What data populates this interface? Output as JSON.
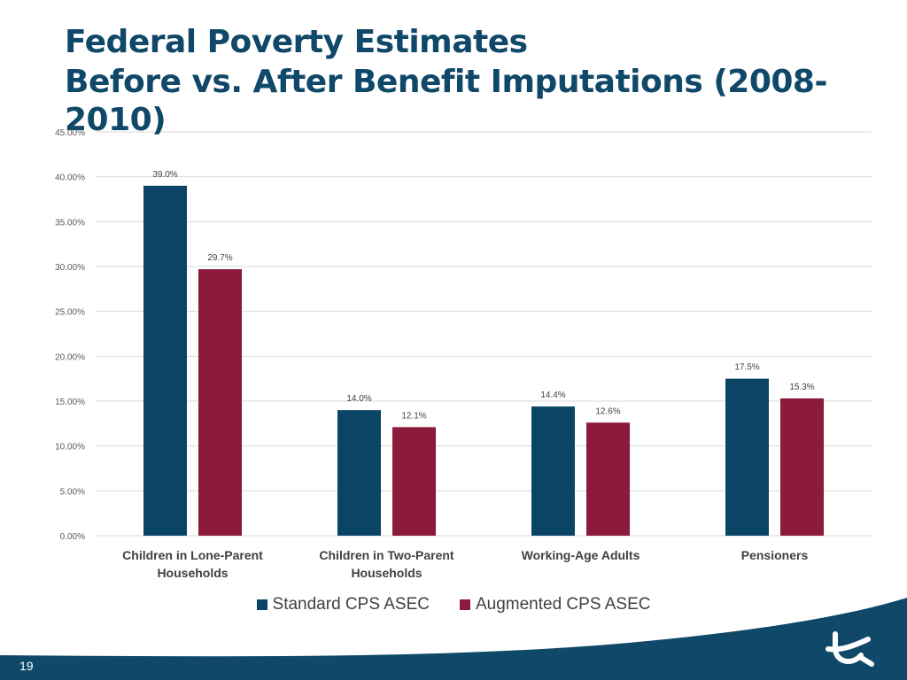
{
  "slide": {
    "title": "Federal Poverty Estimates",
    "subtitle": "Before vs. After Benefit Imputations (2008-2010)",
    "page_number": "19"
  },
  "colors": {
    "title": "#0f4868",
    "standard": "#0b4566",
    "augmented": "#8b1a3b",
    "footer": "#0f4868"
  },
  "chart_data": {
    "type": "bar",
    "title": "Federal Poverty Estimates — Before vs. After Benefit Imputations (2008-2010)",
    "xlabel": "",
    "ylabel": "",
    "ylim": [
      0,
      45
    ],
    "yticks": [
      0,
      5,
      10,
      15,
      20,
      25,
      30,
      35,
      40,
      45
    ],
    "ytick_labels": [
      "0.00%",
      "5.00%",
      "10.00%",
      "15.00%",
      "20.00%",
      "25.00%",
      "30.00%",
      "35.00%",
      "40.00%",
      "45.00%"
    ],
    "grid": true,
    "legend_position": "bottom",
    "categories": [
      [
        "Children in Lone-Parent",
        "Households"
      ],
      [
        "Children in Two-Parent",
        "Households"
      ],
      [
        "Working-Age Adults"
      ],
      [
        "Pensioners"
      ]
    ],
    "series": [
      {
        "name": "Standard CPS ASEC",
        "color": "#0b4566",
        "values": [
          39.0,
          14.0,
          14.4,
          17.5
        ],
        "labels": [
          "39.0%",
          "14.0%",
          "14.4%",
          "17.5%"
        ]
      },
      {
        "name": "Augmented CPS ASEC",
        "color": "#8b1a3b",
        "values": [
          29.7,
          12.1,
          12.6,
          15.3
        ],
        "labels": [
          "29.7%",
          "12.1%",
          "12.6%",
          "15.3%"
        ]
      }
    ]
  }
}
